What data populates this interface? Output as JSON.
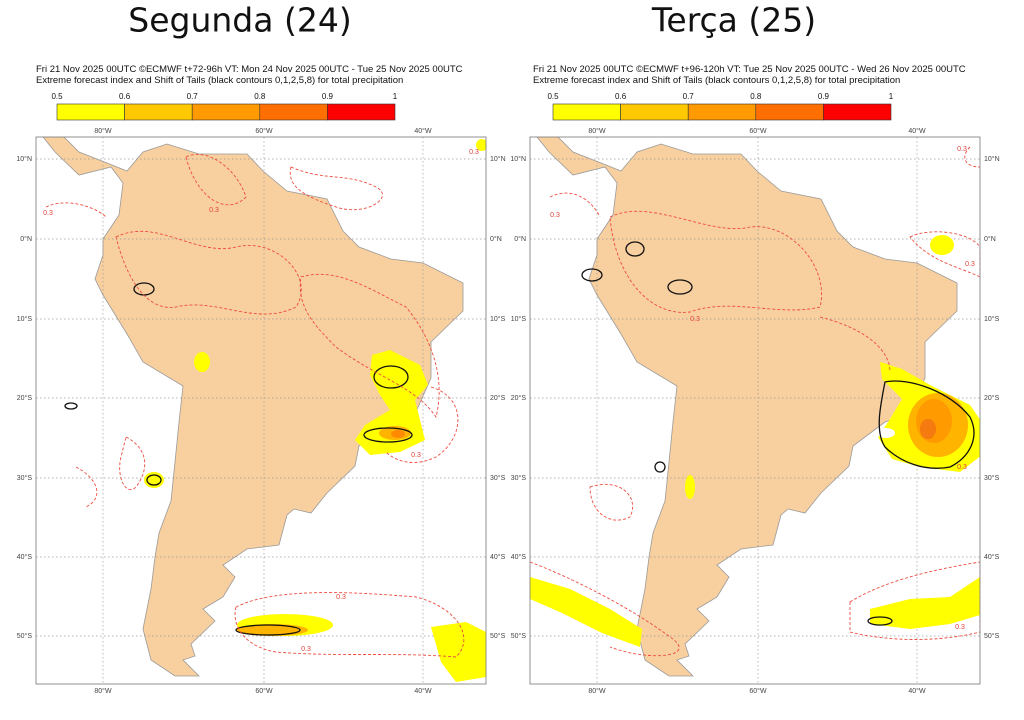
{
  "panels": [
    {
      "title": "Segunda (24)",
      "header": [
        "Fri 21 Nov 2025 00UTC ©ECMWF t+72-96h  VT: Mon 24 Nov 2025 00UTC - Tue 25 Nov 2025 00UTC",
        "Extreme forecast index and Shift of Tails (black contours 0,1,2,5,8) for total precipitation"
      ]
    },
    {
      "title": "Terça (25)",
      "header": [
        "Fri 21 Nov 2025 00UTC ©ECMWF t+96-120h  VT: Tue 25 Nov 2025 00UTC - Wed 26 Nov 2025 00UTC",
        "Extreme forecast index and Shift of Tails (black contours 0,1,2,5,8) for total precipitation"
      ]
    }
  ],
  "colorbar": {
    "labels": [
      "0.5",
      "0.6",
      "0.7",
      "0.8",
      "0.9",
      "1"
    ],
    "colors": [
      "#ffff00",
      "#ffc800",
      "#ff9a00",
      "#ff6f00",
      "#ff0000"
    ]
  },
  "lon_labels": [
    "80°W",
    "60°W",
    "40°W"
  ],
  "lat_labels": [
    "10°N",
    "0°N",
    "10°S",
    "20°S",
    "30°S",
    "40°S",
    "50°S"
  ],
  "contour_label": "0.3"
}
